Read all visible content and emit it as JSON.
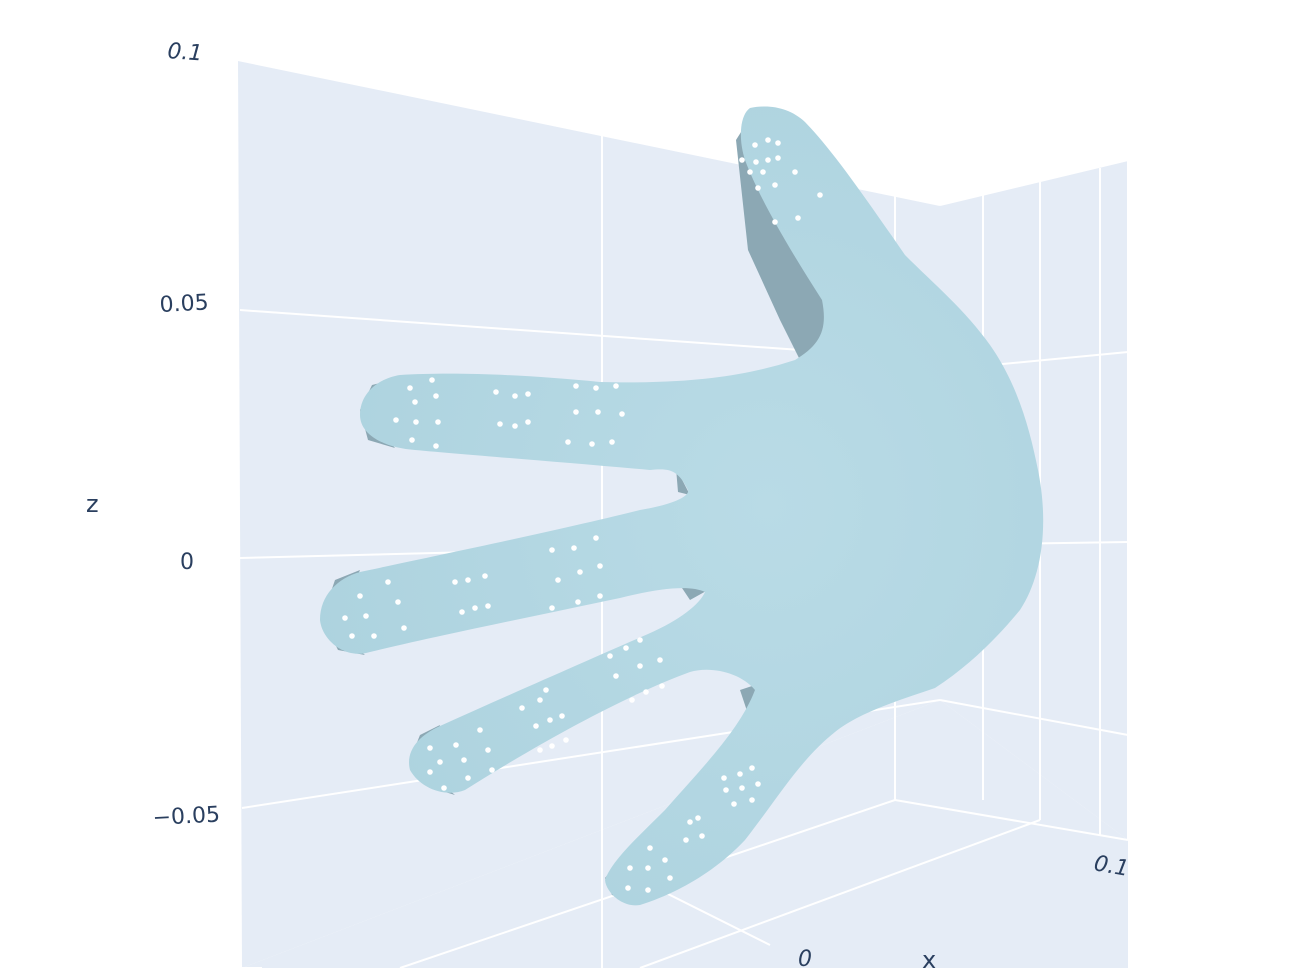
{
  "chart_data": {
    "type": "mesh3d",
    "title": "",
    "axes": {
      "z": {
        "title": "z",
        "range": [
          -0.08,
          0.1
        ],
        "ticks": [
          {
            "value": 0.1,
            "label": "0.1"
          },
          {
            "value": 0.05,
            "label": "0.05"
          },
          {
            "value": 0,
            "label": "0"
          },
          {
            "value": -0.05,
            "label": "−0.05"
          }
        ]
      },
      "x": {
        "title": "x",
        "ticks": [
          {
            "value": 0,
            "label": "0"
          },
          {
            "value": 0.1,
            "label": "0.1"
          }
        ]
      }
    },
    "series": [
      {
        "type": "mesh3d",
        "color": "#add8e6"
      }
    ],
    "scene_background": "#e5ecf6",
    "grid_color": "#ffffff",
    "grid": true
  }
}
